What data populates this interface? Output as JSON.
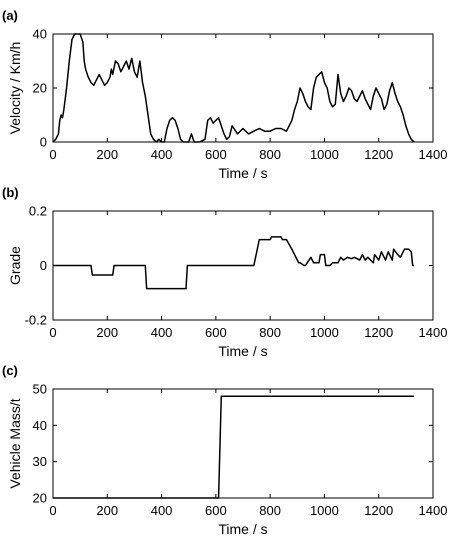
{
  "chart_data": [
    {
      "type": "line",
      "panel_label": "(a)",
      "xlabel": "Time / s",
      "ylabel": "Velocity / Km/h",
      "xlim": [
        0,
        1400
      ],
      "ylim": [
        0,
        40
      ],
      "xticks": [
        0,
        200,
        400,
        600,
        800,
        1000,
        1200,
        1400
      ],
      "yticks": [
        0,
        20,
        40
      ],
      "grid": false,
      "series": [
        {
          "x": [
            0,
            10,
            20,
            25,
            30,
            35,
            40,
            50,
            60,
            70,
            80,
            90,
            100,
            110,
            115,
            120,
            130,
            140,
            150,
            160,
            170,
            180,
            190,
            200,
            210,
            215,
            220,
            230,
            240,
            250,
            260,
            270,
            280,
            290,
            300,
            310,
            320,
            330,
            340,
            350,
            360,
            370,
            380,
            390,
            400,
            410,
            420,
            430,
            440,
            450,
            460,
            470,
            480,
            490,
            500,
            510,
            520,
            540,
            560,
            570,
            580,
            590,
            600,
            610,
            620,
            630,
            640,
            650,
            660,
            680,
            700,
            720,
            740,
            760,
            780,
            800,
            820,
            840,
            860,
            870,
            880,
            890,
            900,
            910,
            920,
            930,
            940,
            950,
            960,
            970,
            980,
            990,
            1000,
            1010,
            1020,
            1030,
            1040,
            1050,
            1060,
            1070,
            1080,
            1090,
            1100,
            1110,
            1120,
            1130,
            1140,
            1150,
            1160,
            1170,
            1180,
            1190,
            1200,
            1210,
            1220,
            1230,
            1240,
            1250,
            1260,
            1270,
            1280,
            1290,
            1300,
            1310,
            1320,
            1330
          ],
          "y": [
            0,
            1,
            3,
            8,
            10,
            9,
            12,
            20,
            30,
            38,
            40,
            40,
            40,
            37,
            30,
            27,
            24,
            22,
            21,
            23,
            25,
            23,
            21,
            22,
            24,
            27,
            25,
            30,
            29,
            26,
            28,
            30,
            27,
            31,
            26,
            24,
            30,
            22,
            17,
            10,
            3,
            1,
            0,
            1,
            0,
            0,
            5,
            8,
            9,
            8,
            5,
            1,
            0,
            0,
            0,
            3,
            0,
            0,
            1,
            8,
            9,
            7,
            8,
            9,
            6,
            3,
            1,
            2,
            6,
            3,
            5,
            3,
            4,
            5,
            4,
            4,
            5,
            5,
            4,
            6,
            8,
            12,
            15,
            20,
            18,
            15,
            13,
            12,
            20,
            24,
            25,
            26,
            22,
            20,
            15,
            13,
            14,
            25,
            18,
            15,
            17,
            20,
            19,
            16,
            15,
            17,
            19,
            16,
            14,
            12,
            17,
            20,
            18,
            16,
            12,
            14,
            19,
            22,
            18,
            15,
            13,
            10,
            6,
            3,
            1,
            0
          ]
        }
      ]
    },
    {
      "type": "line",
      "panel_label": "(b)",
      "xlabel": "Time / s",
      "ylabel": "Grade",
      "xlim": [
        0,
        1400
      ],
      "ylim": [
        -0.2,
        0.2
      ],
      "xticks": [
        0,
        200,
        400,
        600,
        800,
        1000,
        1200,
        1400
      ],
      "yticks": [
        -0.2,
        0,
        0.2
      ],
      "grid": false,
      "series": [
        {
          "x": [
            0,
            140,
            145,
            220,
            225,
            340,
            345,
            490,
            495,
            740,
            760,
            800,
            805,
            840,
            845,
            860,
            880,
            890,
            905,
            910,
            925,
            930,
            950,
            960,
            980,
            985,
            1000,
            1005,
            1020,
            1030,
            1050,
            1060,
            1070,
            1085,
            1100,
            1110,
            1130,
            1140,
            1150,
            1160,
            1180,
            1185,
            1200,
            1210,
            1225,
            1235,
            1250,
            1255,
            1270,
            1280,
            1295,
            1300,
            1310,
            1320,
            1325,
            1330
          ],
          "y": [
            0,
            0,
            -0.035,
            -0.035,
            0,
            0,
            -0.085,
            -0.085,
            0,
            0,
            0.095,
            0.095,
            0.105,
            0.105,
            0.095,
            0.095,
            0.06,
            0.04,
            0.01,
            0.01,
            0,
            0,
            0.03,
            0.01,
            0.01,
            0.04,
            0.04,
            0,
            0,
            0.01,
            0.01,
            0.03,
            0.02,
            0.03,
            0.025,
            0.03,
            0.02,
            0.04,
            0.02,
            0.03,
            0.01,
            0.04,
            0.02,
            0.05,
            0.02,
            0.05,
            0.02,
            0.06,
            0.04,
            0.03,
            0.06,
            0.06,
            0.06,
            0.05,
            0,
            0
          ]
        }
      ]
    },
    {
      "type": "line",
      "panel_label": "(c)",
      "xlabel": "Time / s",
      "ylabel": "Vehicle Mass/t",
      "xlim": [
        0,
        1400
      ],
      "ylim": [
        20,
        50
      ],
      "xticks": [
        0,
        200,
        400,
        600,
        800,
        1000,
        1200,
        1400
      ],
      "yticks": [
        20,
        30,
        40,
        50
      ],
      "grid": false,
      "series": [
        {
          "x": [
            0,
            610,
            620,
            1330
          ],
          "y": [
            20,
            20,
            48,
            48
          ]
        }
      ]
    }
  ]
}
